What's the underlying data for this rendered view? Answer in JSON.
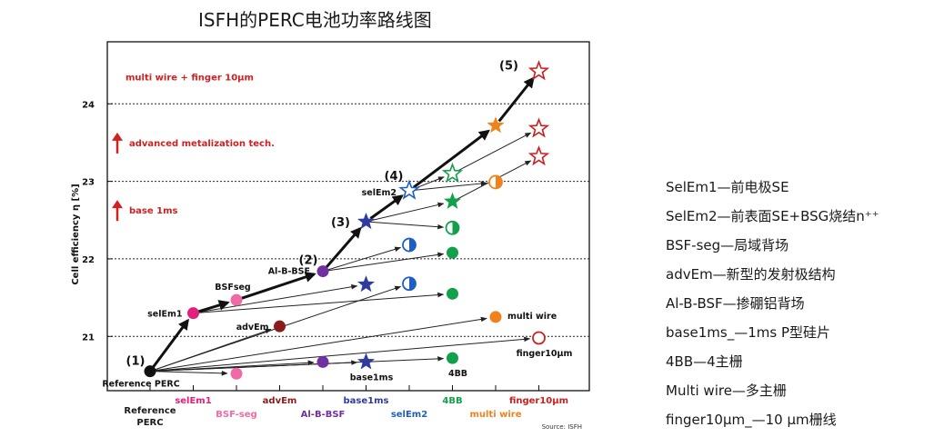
{
  "title": "ISFH的PERC电池功率路线图",
  "source": "Source: ISFH",
  "legend": [
    "SelEm1—前电极SE",
    "SelEm2—前表面SE+BSG烧结n⁺⁺",
    "BSF-seg—局域背场",
    "advEm—新型的发射极结构",
    "Al-B-BSF—掺硼铝背场",
    "base1ms_—1ms P型硅片",
    "4BB—4主栅",
    "Multi wire—多主栅",
    "finger10μm_—10 μm栅线"
  ],
  "chart_data": {
    "type": "scatter",
    "ylabel": "Cell efficiency η [%]",
    "ylim": [
      20.3,
      24.8
    ],
    "yticks": [
      21,
      22,
      23,
      24
    ],
    "dotted_lines": [
      21,
      22,
      23,
      24
    ],
    "x_categories": [
      {
        "label": "Reference\nPERC",
        "color": "#1a1a1a"
      },
      {
        "label": "selEm1",
        "color": "#e0207a"
      },
      {
        "label": "BSF-seg",
        "color": "#f06aa8"
      },
      {
        "label": "advEm",
        "color": "#8b1a1a"
      },
      {
        "label": "Al-B-BSF",
        "color": "#7030a0"
      },
      {
        "label": "base1ms",
        "color": "#2f3b9e"
      },
      {
        "label": "selEm2",
        "color": "#1f5fbf"
      },
      {
        "label": "4BB",
        "color": "#12a04a"
      },
      {
        "label": "multi wire",
        "color": "#f0821e"
      },
      {
        "label": "finger10μm",
        "color": "#cc1f1f"
      }
    ],
    "points": [
      {
        "x": 0,
        "y": 20.55,
        "marker": "circle",
        "color": "#111111",
        "label": "Reference PERC",
        "label_pos": "below"
      },
      {
        "x": 1,
        "y": 21.3,
        "marker": "circle",
        "color": "#e0207a",
        "label": "selEm1",
        "label_pos": "left"
      },
      {
        "x": 2,
        "y": 21.47,
        "marker": "circle",
        "color": "#f06aa8",
        "label": "BSFseg",
        "label_pos": "above"
      },
      {
        "x": 2,
        "y": 20.52,
        "marker": "circle",
        "color": "#f06aa8",
        "label": "",
        "label_pos": ""
      },
      {
        "x": 3,
        "y": 21.13,
        "marker": "circle",
        "color": "#8b1a1a",
        "label": "advEm",
        "label_pos": "left"
      },
      {
        "x": 4,
        "y": 21.84,
        "marker": "circle",
        "color": "#7030a0",
        "label": "Al-B-BSF",
        "label_pos": "left"
      },
      {
        "x": 4,
        "y": 20.67,
        "marker": "circle",
        "color": "#7030a0",
        "label": "",
        "label_pos": ""
      },
      {
        "x": 5,
        "y": 22.48,
        "marker": "star",
        "color": "#2f3b9e",
        "label": "",
        "label_pos": ""
      },
      {
        "x": 5,
        "y": 21.67,
        "marker": "star",
        "color": "#2f3b9e",
        "label": "",
        "label_pos": ""
      },
      {
        "x": 5,
        "y": 20.67,
        "marker": "star",
        "color": "#2f3b9e",
        "label": "base1ms",
        "label_pos": "below"
      },
      {
        "x": 6,
        "y": 22.88,
        "marker": "star-open",
        "color": "#1f5fbf",
        "label": "selEm2",
        "label_pos": "left"
      },
      {
        "x": 6,
        "y": 22.18,
        "marker": "half",
        "color": "#1f5fbf",
        "label": "",
        "label_pos": ""
      },
      {
        "x": 6,
        "y": 21.68,
        "marker": "half",
        "color": "#1f5fbf",
        "label": "",
        "label_pos": ""
      },
      {
        "x": 7,
        "y": 23.1,
        "marker": "star-open",
        "color": "#12a04a",
        "label": "",
        "label_pos": ""
      },
      {
        "x": 7,
        "y": 22.74,
        "marker": "star",
        "color": "#12a04a",
        "label": "",
        "label_pos": ""
      },
      {
        "x": 7,
        "y": 22.4,
        "marker": "half",
        "color": "#12a04a",
        "label": "",
        "label_pos": ""
      },
      {
        "x": 7,
        "y": 22.08,
        "marker": "circle",
        "color": "#12a04a",
        "label": "",
        "label_pos": ""
      },
      {
        "x": 7,
        "y": 21.55,
        "marker": "circle",
        "color": "#12a04a",
        "label": "",
        "label_pos": ""
      },
      {
        "x": 7,
        "y": 20.72,
        "marker": "circle",
        "color": "#12a04a",
        "label": "4BB",
        "label_pos": "below"
      },
      {
        "x": 8,
        "y": 23.72,
        "marker": "star",
        "color": "#f0821e",
        "label": "",
        "label_pos": ""
      },
      {
        "x": 8,
        "y": 22.99,
        "marker": "half",
        "color": "#f0821e",
        "label": "",
        "label_pos": ""
      },
      {
        "x": 8,
        "y": 21.25,
        "marker": "circle",
        "color": "#f0821e",
        "label": "multi wire",
        "label_pos": "right"
      },
      {
        "x": 9,
        "y": 24.42,
        "marker": "star-open",
        "color": "#cc1f1f",
        "label": "",
        "label_pos": ""
      },
      {
        "x": 9,
        "y": 23.68,
        "marker": "star-open",
        "color": "#cc1f1f",
        "label": "",
        "label_pos": ""
      },
      {
        "x": 9,
        "y": 23.32,
        "marker": "star-open",
        "color": "#cc1f1f",
        "label": "",
        "label_pos": ""
      },
      {
        "x": 9,
        "y": 20.98,
        "marker": "circle-open",
        "color": "#cc1f1f",
        "label": "finger10μm",
        "label_pos": "below"
      }
    ],
    "bold_path": [
      [
        0,
        20.55
      ],
      [
        1,
        21.3
      ],
      [
        2,
        21.47
      ],
      [
        4,
        21.84
      ],
      [
        5,
        22.48
      ],
      [
        6,
        22.88
      ],
      [
        8,
        23.72
      ],
      [
        9,
        24.42
      ]
    ],
    "thin_arrows": [
      [
        [
          0,
          20.55
        ],
        [
          2,
          20.52
        ]
      ],
      [
        [
          0,
          20.55
        ],
        [
          4,
          20.67
        ]
      ],
      [
        [
          0,
          20.55
        ],
        [
          5,
          20.67
        ]
      ],
      [
        [
          0,
          20.55
        ],
        [
          7,
          20.72
        ]
      ],
      [
        [
          0,
          20.55
        ],
        [
          9,
          20.98
        ]
      ],
      [
        [
          0,
          20.55
        ],
        [
          8,
          21.25
        ]
      ],
      [
        [
          0,
          20.55
        ],
        [
          3,
          21.13
        ]
      ],
      [
        [
          0,
          20.55
        ],
        [
          6,
          21.68
        ]
      ],
      [
        [
          1,
          21.3
        ],
        [
          5,
          21.67
        ]
      ],
      [
        [
          1,
          21.3
        ],
        [
          7,
          21.55
        ]
      ],
      [
        [
          4,
          21.84
        ],
        [
          6,
          22.18
        ]
      ],
      [
        [
          4,
          21.84
        ],
        [
          7,
          22.08
        ]
      ],
      [
        [
          5,
          22.48
        ],
        [
          7,
          22.4
        ]
      ],
      [
        [
          5,
          22.48
        ],
        [
          7,
          22.74
        ]
      ],
      [
        [
          6,
          22.88
        ],
        [
          8,
          22.99
        ]
      ],
      [
        [
          6,
          22.88
        ],
        [
          7,
          23.1
        ]
      ],
      [
        [
          7,
          22.74
        ],
        [
          9,
          23.32
        ]
      ],
      [
        [
          7,
          23.1
        ],
        [
          9,
          23.68
        ]
      ]
    ],
    "step_labels": [
      {
        "text": "(1)",
        "x": 0,
        "y": 20.55
      },
      {
        "text": "(2)",
        "x": 4,
        "y": 21.84
      },
      {
        "text": "(3)",
        "x": 5,
        "y": 22.48
      },
      {
        "text": "(4)",
        "x": 6,
        "y": 22.88
      },
      {
        "text": "(5)",
        "x": 9,
        "y": 24.42
      }
    ],
    "annotations": [
      {
        "text": "multi wire + finger 10μm",
        "arrow": false,
        "y": 24.35
      },
      {
        "text": "advanced metalization tech.",
        "arrow": true,
        "y": 23.5
      },
      {
        "text": "base 1ms",
        "arrow": true,
        "y": 22.63
      }
    ]
  }
}
